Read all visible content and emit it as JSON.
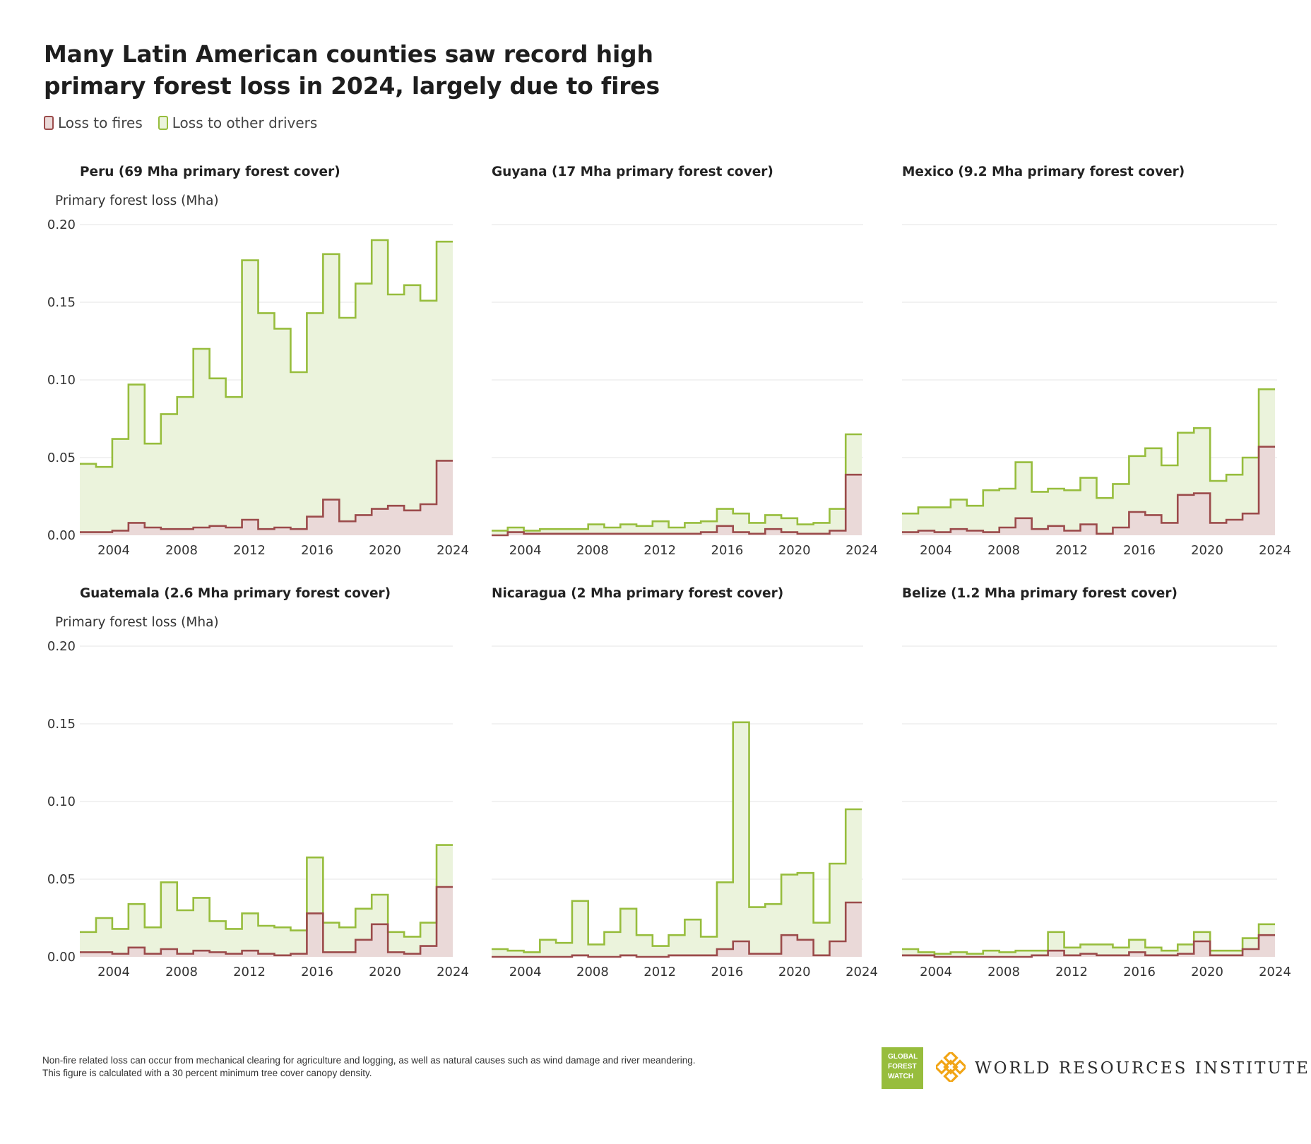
{
  "title": "Many Latin American counties saw record high primary forest loss in 2024, largely due to fires",
  "legend": {
    "fires_label": "Loss to fires",
    "other_label": "Loss to other drivers"
  },
  "colors": {
    "fire_stroke": "#9b4b4b",
    "fire_fill": "#ead9d8",
    "other_stroke": "#97bd3d",
    "other_fill": "#ebf3dc",
    "grid": "#e4e4e4"
  },
  "footnote": "Non-fire related loss can occur from mechanical clearing for agriculture and logging, as well as natural causes such as wind damage and river meandering. This figure is calculated with a 30 percent minimum tree cover canopy density.",
  "logos": {
    "gfw_lines": [
      "GLOBAL",
      "FOREST",
      "WATCH"
    ],
    "wri_text": "WORLD RESOURCES INSTITUTE"
  },
  "chart_data": [
    {
      "type": "area",
      "title": "Peru (69 Mha primary forest cover)",
      "ylabel": "Primary forest loss (Mha)",
      "xlabel": "",
      "step": true,
      "stacked": true,
      "x": [
        2002,
        2003,
        2004,
        2005,
        2006,
        2007,
        2008,
        2009,
        2010,
        2011,
        2012,
        2013,
        2014,
        2015,
        2016,
        2017,
        2018,
        2019,
        2020,
        2021,
        2022,
        2023,
        2024
      ],
      "x_ticks": [
        "2004",
        "2008",
        "2012",
        "2016",
        "2020",
        "2024"
      ],
      "y_ticks": [
        "0.00",
        "0.05",
        "0.10",
        "0.15",
        "0.20"
      ],
      "ylim": [
        0,
        0.2
      ],
      "grid": true,
      "series": [
        {
          "name": "Loss to fires",
          "values": [
            0.002,
            0.002,
            0.003,
            0.008,
            0.005,
            0.004,
            0.004,
            0.005,
            0.006,
            0.005,
            0.01,
            0.004,
            0.005,
            0.004,
            0.012,
            0.023,
            0.009,
            0.013,
            0.017,
            0.019,
            0.016,
            0.02,
            0.048
          ]
        },
        {
          "name": "Loss to other drivers",
          "values": [
            0.044,
            0.042,
            0.059,
            0.089,
            0.054,
            0.074,
            0.085,
            0.115,
            0.095,
            0.084,
            0.167,
            0.139,
            0.128,
            0.101,
            0.131,
            0.158,
            0.131,
            0.149,
            0.173,
            0.136,
            0.145,
            0.131,
            0.141
          ]
        }
      ]
    },
    {
      "type": "area",
      "title": "Guyana (17 Mha primary forest cover)",
      "ylabel": "",
      "xlabel": "",
      "step": true,
      "stacked": true,
      "x": [
        2002,
        2003,
        2004,
        2005,
        2006,
        2007,
        2008,
        2009,
        2010,
        2011,
        2012,
        2013,
        2014,
        2015,
        2016,
        2017,
        2018,
        2019,
        2020,
        2021,
        2022,
        2023,
        2024
      ],
      "x_ticks": [
        "2004",
        "2008",
        "2012",
        "2016",
        "2020",
        "2024"
      ],
      "ylim": [
        0,
        0.2
      ],
      "grid": true,
      "series": [
        {
          "name": "Loss to fires",
          "values": [
            0.0,
            0.002,
            0.001,
            0.001,
            0.001,
            0.001,
            0.001,
            0.001,
            0.001,
            0.001,
            0.001,
            0.001,
            0.001,
            0.002,
            0.006,
            0.002,
            0.001,
            0.004,
            0.002,
            0.001,
            0.001,
            0.003,
            0.039
          ]
        },
        {
          "name": "Loss to other drivers",
          "values": [
            0.003,
            0.003,
            0.002,
            0.003,
            0.003,
            0.003,
            0.006,
            0.004,
            0.006,
            0.005,
            0.008,
            0.004,
            0.007,
            0.007,
            0.011,
            0.012,
            0.007,
            0.009,
            0.009,
            0.006,
            0.007,
            0.014,
            0.026
          ]
        }
      ]
    },
    {
      "type": "area",
      "title": "Mexico (9.2 Mha primary forest cover)",
      "ylabel": "",
      "xlabel": "",
      "step": true,
      "stacked": true,
      "x": [
        2002,
        2003,
        2004,
        2005,
        2006,
        2007,
        2008,
        2009,
        2010,
        2011,
        2012,
        2013,
        2014,
        2015,
        2016,
        2017,
        2018,
        2019,
        2020,
        2021,
        2022,
        2023,
        2024
      ],
      "x_ticks": [
        "2004",
        "2008",
        "2012",
        "2016",
        "2020",
        "2024"
      ],
      "ylim": [
        0,
        0.2
      ],
      "grid": true,
      "series": [
        {
          "name": "Loss to fires",
          "values": [
            0.002,
            0.003,
            0.002,
            0.004,
            0.003,
            0.002,
            0.005,
            0.011,
            0.004,
            0.006,
            0.003,
            0.007,
            0.001,
            0.005,
            0.015,
            0.013,
            0.008,
            0.026,
            0.027,
            0.008,
            0.01,
            0.014,
            0.057
          ]
        },
        {
          "name": "Loss to other drivers",
          "values": [
            0.012,
            0.015,
            0.016,
            0.019,
            0.016,
            0.027,
            0.025,
            0.036,
            0.024,
            0.024,
            0.026,
            0.03,
            0.023,
            0.028,
            0.036,
            0.043,
            0.037,
            0.04,
            0.042,
            0.027,
            0.029,
            0.036,
            0.037
          ]
        }
      ]
    },
    {
      "type": "area",
      "title": "Guatemala (2.6 Mha primary forest cover)",
      "ylabel": "Primary forest loss (Mha)",
      "xlabel": "",
      "step": true,
      "stacked": true,
      "x": [
        2002,
        2003,
        2004,
        2005,
        2006,
        2007,
        2008,
        2009,
        2010,
        2011,
        2012,
        2013,
        2014,
        2015,
        2016,
        2017,
        2018,
        2019,
        2020,
        2021,
        2022,
        2023,
        2024
      ],
      "x_ticks": [
        "2004",
        "2008",
        "2012",
        "2016",
        "2020",
        "2024"
      ],
      "y_ticks": [
        "0.00",
        "0.05",
        "0.10",
        "0.15",
        "0.20"
      ],
      "ylim": [
        0,
        0.2
      ],
      "grid": true,
      "series": [
        {
          "name": "Loss to fires",
          "values": [
            0.003,
            0.003,
            0.002,
            0.006,
            0.002,
            0.005,
            0.002,
            0.004,
            0.003,
            0.002,
            0.004,
            0.002,
            0.001,
            0.002,
            0.028,
            0.003,
            0.003,
            0.011,
            0.021,
            0.003,
            0.002,
            0.007,
            0.045
          ]
        },
        {
          "name": "Loss to other drivers",
          "values": [
            0.013,
            0.022,
            0.016,
            0.028,
            0.017,
            0.043,
            0.028,
            0.034,
            0.02,
            0.016,
            0.024,
            0.018,
            0.018,
            0.015,
            0.036,
            0.019,
            0.016,
            0.02,
            0.019,
            0.013,
            0.011,
            0.015,
            0.027
          ]
        }
      ]
    },
    {
      "type": "area",
      "title": "Nicaragua (2 Mha primary forest cover)",
      "ylabel": "",
      "xlabel": "",
      "step": true,
      "stacked": true,
      "x": [
        2002,
        2003,
        2004,
        2005,
        2006,
        2007,
        2008,
        2009,
        2010,
        2011,
        2012,
        2013,
        2014,
        2015,
        2016,
        2017,
        2018,
        2019,
        2020,
        2021,
        2022,
        2023,
        2024
      ],
      "x_ticks": [
        "2004",
        "2008",
        "2012",
        "2016",
        "2020",
        "2024"
      ],
      "ylim": [
        0,
        0.2
      ],
      "grid": true,
      "series": [
        {
          "name": "Loss to fires",
          "values": [
            0.0,
            0.0,
            0.0,
            0.0,
            0.0,
            0.001,
            0.0,
            0.0,
            0.001,
            0.0,
            0.0,
            0.001,
            0.001,
            0.001,
            0.005,
            0.01,
            0.002,
            0.002,
            0.014,
            0.011,
            0.001,
            0.01,
            0.035
          ]
        },
        {
          "name": "Loss to other drivers",
          "values": [
            0.005,
            0.004,
            0.003,
            0.011,
            0.009,
            0.035,
            0.008,
            0.016,
            0.03,
            0.014,
            0.007,
            0.013,
            0.023,
            0.012,
            0.043,
            0.141,
            0.03,
            0.032,
            0.039,
            0.043,
            0.021,
            0.05,
            0.06
          ]
        }
      ]
    },
    {
      "type": "area",
      "title": "Belize (1.2 Mha primary forest cover)",
      "ylabel": "",
      "xlabel": "",
      "step": true,
      "stacked": true,
      "x": [
        2002,
        2003,
        2004,
        2005,
        2006,
        2007,
        2008,
        2009,
        2010,
        2011,
        2012,
        2013,
        2014,
        2015,
        2016,
        2017,
        2018,
        2019,
        2020,
        2021,
        2022,
        2023,
        2024
      ],
      "x_ticks": [
        "2004",
        "2008",
        "2012",
        "2016",
        "2020",
        "2024"
      ],
      "ylim": [
        0,
        0.2
      ],
      "grid": true,
      "series": [
        {
          "name": "Loss to fires",
          "values": [
            0.001,
            0.001,
            0.0,
            0.0,
            0.0,
            0.0,
            0.0,
            0.0,
            0.001,
            0.004,
            0.001,
            0.002,
            0.001,
            0.001,
            0.003,
            0.001,
            0.001,
            0.002,
            0.01,
            0.001,
            0.001,
            0.005,
            0.014
          ]
        },
        {
          "name": "Loss to other drivers",
          "values": [
            0.004,
            0.002,
            0.002,
            0.003,
            0.002,
            0.004,
            0.003,
            0.004,
            0.003,
            0.012,
            0.005,
            0.006,
            0.007,
            0.005,
            0.008,
            0.005,
            0.003,
            0.006,
            0.006,
            0.003,
            0.003,
            0.007,
            0.007
          ]
        }
      ]
    }
  ]
}
